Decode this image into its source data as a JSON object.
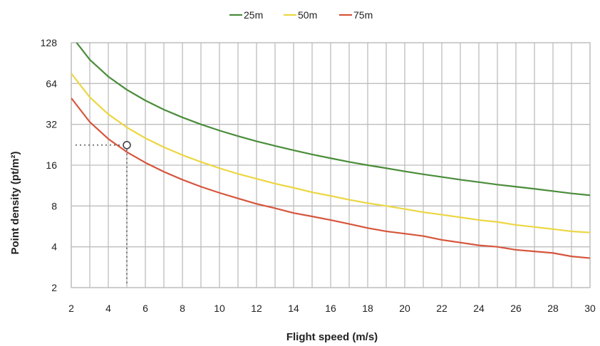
{
  "chart_data": {
    "type": "line",
    "title": "",
    "xlabel": "Flight speed (m/s)",
    "ylabel": "Point density (pt/m²)",
    "xlim": [
      2,
      30
    ],
    "ylim": [
      2,
      128
    ],
    "yscale": "log2",
    "grid": true,
    "legend_position": "top-center",
    "x_ticks": [
      "2",
      "4",
      "6",
      "8",
      "10",
      "12",
      "14",
      "16",
      "18",
      "20",
      "22",
      "24",
      "26",
      "28",
      "30"
    ],
    "y_ticks": [
      "2",
      "4",
      "8",
      "16",
      "32",
      "64",
      "128"
    ],
    "x": [
      2,
      3,
      4,
      5,
      6,
      7,
      8,
      9,
      10,
      11,
      12,
      13,
      14,
      15,
      16,
      17,
      18,
      19,
      20,
      21,
      22,
      23,
      24,
      25,
      26,
      27,
      28,
      29,
      30
    ],
    "series": [
      {
        "name": "25m",
        "color": "#4a8c3a",
        "values": [
          144,
          96,
          72,
          57.6,
          48,
          41.1,
          36,
          32,
          28.8,
          26.2,
          24,
          22.2,
          20.6,
          19.2,
          18,
          16.9,
          16,
          15.2,
          14.4,
          13.7,
          13.1,
          12.5,
          12,
          11.5,
          11.1,
          10.7,
          10.3,
          9.9,
          9.6
        ]
      },
      {
        "name": "50m",
        "color": "#ecd642",
        "values": [
          76,
          50.7,
          38,
          30.4,
          25.3,
          21.7,
          19,
          16.9,
          15.2,
          13.8,
          12.7,
          11.7,
          10.9,
          10.1,
          9.5,
          8.9,
          8.4,
          8,
          7.6,
          7.2,
          6.9,
          6.6,
          6.3,
          6.1,
          5.8,
          5.6,
          5.4,
          5.2,
          5.1
        ]
      },
      {
        "name": "75m",
        "color": "#d6553c",
        "values": [
          50,
          33.3,
          25,
          20,
          16.7,
          14.3,
          12.5,
          11.1,
          10,
          9.1,
          8.3,
          7.7,
          7.1,
          6.7,
          6.3,
          5.9,
          5.5,
          5.2,
          5,
          4.8,
          4.5,
          4.3,
          4.1,
          4,
          3.8,
          3.7,
          3.6,
          3.4,
          3.3
        ]
      }
    ],
    "annotation": {
      "marker": "circle",
      "x": 5,
      "y": 22.5,
      "guides": "dotted lines to both axes"
    }
  }
}
